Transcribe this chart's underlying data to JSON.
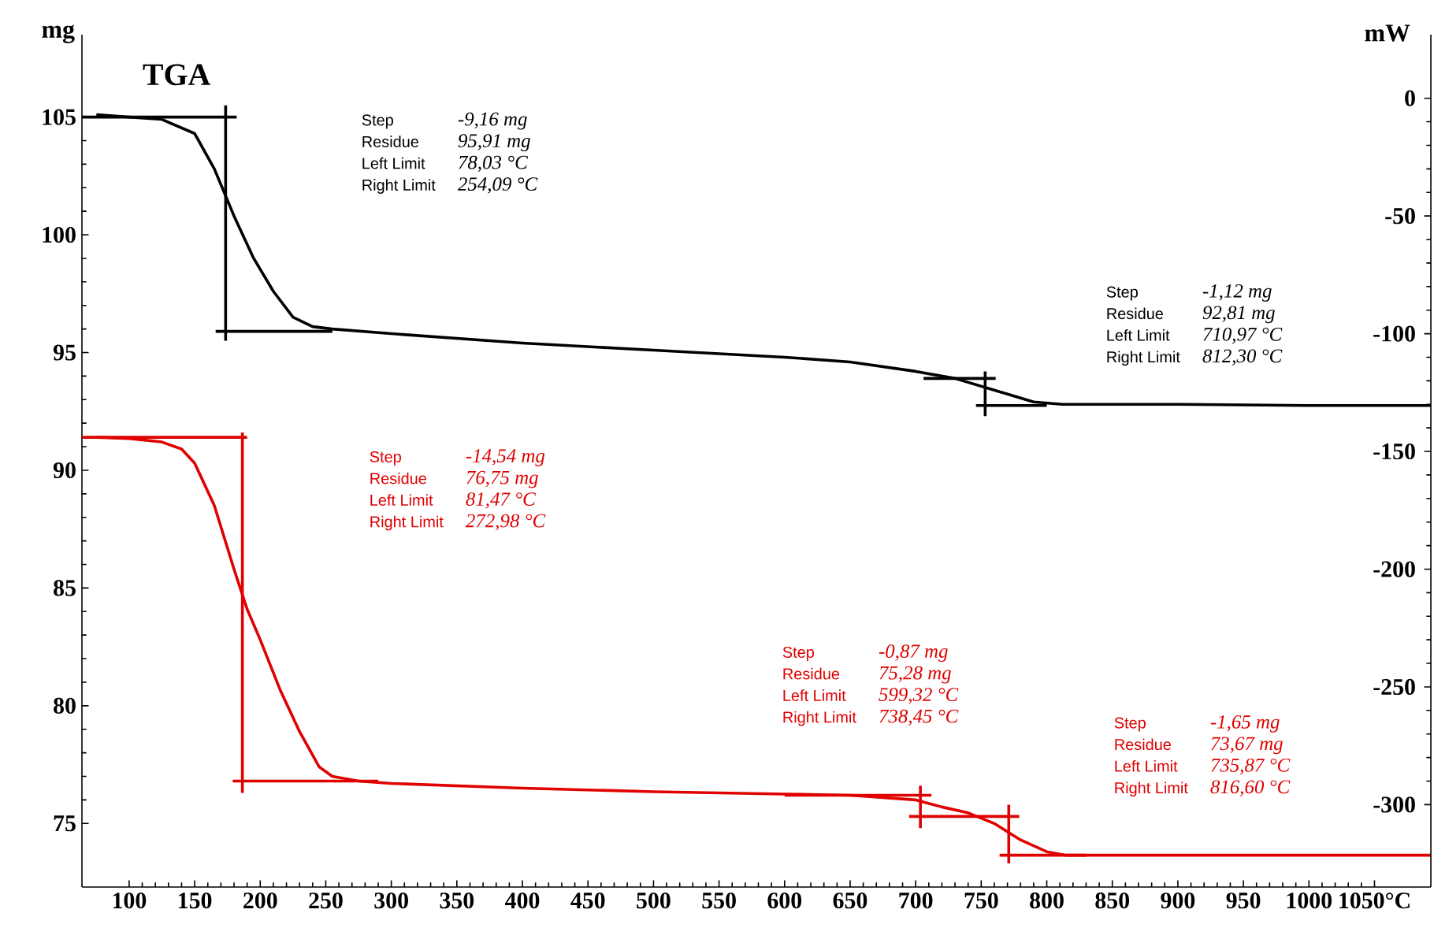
{
  "chart_data": {
    "type": "line",
    "title": "TGA",
    "ylabel": "mg",
    "y2label": "mW",
    "xlim": [
      64,
      1093
    ],
    "ylim": [
      72.3,
      108.5
    ],
    "y2lim": [
      -335,
      27
    ],
    "xticks": [
      100,
      150,
      200,
      250,
      300,
      350,
      400,
      450,
      500,
      550,
      600,
      650,
      700,
      750,
      800,
      850,
      900,
      950,
      1000,
      {
        "value": 1050,
        "label": "1050°C"
      }
    ],
    "yticks": [
      75,
      80,
      85,
      90,
      95,
      100,
      105
    ],
    "y2ticks": [
      0,
      -50,
      -100,
      -150,
      -200,
      -250,
      -300
    ],
    "series": [
      {
        "color": "#000000",
        "x": [
          75,
          100,
          125,
          150,
          165,
          180,
          195,
          210,
          225,
          240,
          255,
          300,
          400,
          500,
          600,
          650,
          700,
          730,
          760,
          790,
          812,
          900,
          1000,
          1093
        ],
        "values": [
          105.1,
          105.0,
          104.9,
          104.3,
          102.8,
          100.8,
          99.0,
          97.6,
          96.5,
          96.1,
          96.0,
          95.8,
          95.4,
          95.1,
          94.8,
          94.6,
          94.2,
          93.9,
          93.4,
          92.9,
          92.8,
          92.8,
          92.75,
          92.75
        ]
      },
      {
        "color": "#e00000",
        "x": [
          75,
          100,
          125,
          140,
          150,
          165,
          180,
          190,
          200,
          215,
          230,
          245,
          255,
          275,
          300,
          400,
          500,
          600,
          650,
          700,
          720,
          740,
          760,
          780,
          800,
          815,
          900,
          1000,
          1093
        ],
        "values": [
          91.4,
          91.35,
          91.2,
          90.9,
          90.3,
          88.5,
          85.8,
          84.1,
          82.8,
          80.7,
          78.9,
          77.4,
          77.0,
          76.8,
          76.7,
          76.5,
          76.35,
          76.25,
          76.2,
          76.0,
          75.7,
          75.45,
          75.0,
          74.3,
          73.8,
          73.65,
          73.65,
          73.65,
          73.65
        ]
      },
      {
        "color": "#000000",
        "x": [
          64,
          182,
          null,
          173.6,
          173.6,
          null,
          166,
          255,
          null,
          706,
          761,
          null,
          746,
          800,
          null,
          753,
          753
        ],
        "values": [
          105,
          105,
          null,
          105.5,
          95.5,
          null,
          95.9,
          95.9,
          null,
          93.9,
          93.9,
          null,
          92.75,
          92.75,
          null,
          94.2,
          92.3
        ]
      },
      {
        "color": "#e00000",
        "x": [
          64,
          190,
          null,
          186.4,
          186.4,
          null,
          179,
          290,
          null,
          600,
          712,
          null,
          703.6,
          703.6,
          null,
          695,
          779,
          null,
          771,
          771,
          null,
          764,
          830
        ],
        "values": [
          91.4,
          91.4,
          null,
          91.6,
          76.3,
          null,
          76.8,
          76.8,
          null,
          76.2,
          76.2,
          null,
          76.6,
          74.8,
          null,
          75.3,
          75.3,
          null,
          75.8,
          73.3,
          null,
          73.65,
          73.65
        ]
      }
    ],
    "annotations": [
      "Step",
      "-9,16 mg",
      "Residue",
      "95,91 mg",
      "Left Limit",
      "78,03 °C",
      "Right Limit",
      "254,09 °C",
      "Step",
      "-1,12 mg",
      "Residue",
      "92,81 mg",
      "Left Limit",
      "710,97 °C",
      "Right Limit",
      "812,30 °C",
      "Step",
      "-14,54 mg",
      "Residue",
      "76,75 mg",
      "Left Limit",
      "81,47 °C",
      "Right Limit",
      "272,98 °C",
      "Step",
      "-0,87 mg",
      "Residue",
      "75,28 mg",
      "Left Limit",
      "599,32 °C",
      "Right Limit",
      "738,45 °C",
      "Step",
      "-1,65 mg",
      "Residue",
      "73,67 mg",
      "Left Limit",
      "735,87 °C",
      "Right Limit",
      "816,60 °C"
    ]
  }
}
